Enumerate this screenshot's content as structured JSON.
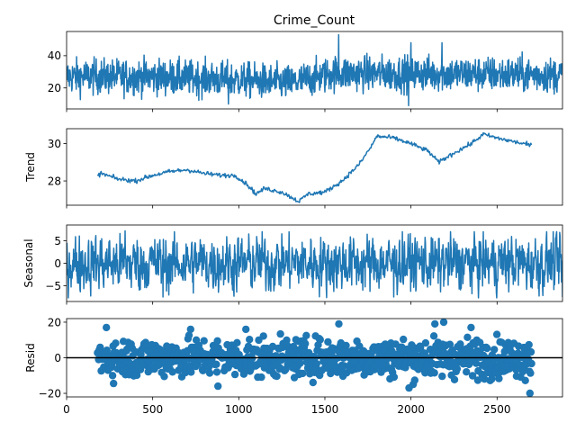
{
  "chart_data": {
    "type": "line",
    "title": "Crime_Count",
    "x_range": [
      0,
      2880
    ],
    "x_ticks": [
      0,
      500,
      1000,
      1500,
      2000,
      2500
    ],
    "color": "#1f77b4",
    "zero_line_color": "#000000",
    "panels": [
      {
        "key": "observed",
        "ylabel": "",
        "style": "line",
        "ylim": [
          7,
          55
        ],
        "yticks": [
          20,
          40
        ],
        "x_span": [
          0,
          2880
        ],
        "profile": [
          [
            0,
            27
          ],
          [
            500,
            27
          ],
          [
            1000,
            25
          ],
          [
            1300,
            23
          ],
          [
            1550,
            29
          ],
          [
            2000,
            29
          ],
          [
            2880,
            28
          ]
        ],
        "noise": 5.5,
        "spikes": [
          [
            1580,
            53
          ],
          [
            1985,
            9
          ],
          [
            940,
            10
          ],
          [
            2180,
            48
          ],
          [
            2000,
            48
          ]
        ]
      },
      {
        "key": "trend",
        "ylabel": "Trend",
        "style": "line",
        "ylim": [
          26.7,
          30.8
        ],
        "yticks": [
          28,
          30
        ],
        "x_span": [
          180,
          2700
        ],
        "profile": [
          [
            180,
            28.3
          ],
          [
            200,
            28.4
          ],
          [
            300,
            28.1
          ],
          [
            400,
            28.0
          ],
          [
            500,
            28.3
          ],
          [
            600,
            28.5
          ],
          [
            700,
            28.6
          ],
          [
            800,
            28.4
          ],
          [
            900,
            28.3
          ],
          [
            980,
            28.3
          ],
          [
            1050,
            27.8
          ],
          [
            1100,
            27.3
          ],
          [
            1150,
            27.6
          ],
          [
            1250,
            27.4
          ],
          [
            1350,
            26.9
          ],
          [
            1400,
            27.3
          ],
          [
            1500,
            27.4
          ],
          [
            1600,
            28.0
          ],
          [
            1700,
            28.9
          ],
          [
            1780,
            30.0
          ],
          [
            1800,
            30.4
          ],
          [
            1900,
            30.3
          ],
          [
            2000,
            30.0
          ],
          [
            2100,
            29.6
          ],
          [
            2160,
            29.0
          ],
          [
            2250,
            29.5
          ],
          [
            2350,
            30.0
          ],
          [
            2420,
            30.5
          ],
          [
            2500,
            30.3
          ],
          [
            2600,
            30.1
          ],
          [
            2700,
            29.9
          ]
        ],
        "noise": 0.06
      },
      {
        "key": "seasonal",
        "ylabel": "Seasonal",
        "style": "line",
        "ylim": [
          -8.5,
          8.5
        ],
        "yticks": [
          -5,
          0,
          5
        ],
        "x_span": [
          0,
          2880
        ],
        "profile": [
          [
            0,
            0
          ],
          [
            2880,
            0
          ]
        ],
        "noise": 3.2,
        "spikes": [
          [
            560,
            -7.5
          ],
          [
            340,
            7.2
          ],
          [
            1900,
            -7.5
          ],
          [
            2880,
            -7.5
          ]
        ]
      },
      {
        "key": "resid",
        "ylabel": "Resid",
        "style": "scatter",
        "ylim": [
          -22,
          22
        ],
        "yticks": [
          -20,
          0,
          20
        ],
        "x_span": [
          180,
          2700
        ],
        "profile": [
          [
            180,
            0
          ],
          [
            2700,
            0
          ]
        ],
        "noise": 5.5,
        "zero_line": true,
        "spikes": [
          [
            230,
            17
          ],
          [
            720,
            16
          ],
          [
            1040,
            16
          ],
          [
            1580,
            19
          ],
          [
            2140,
            19
          ],
          [
            2190,
            20
          ],
          [
            2690,
            -20
          ],
          [
            1990,
            -17
          ],
          [
            880,
            -16
          ],
          [
            2720,
            -21
          ],
          [
            2350,
            17
          ]
        ]
      }
    ]
  }
}
